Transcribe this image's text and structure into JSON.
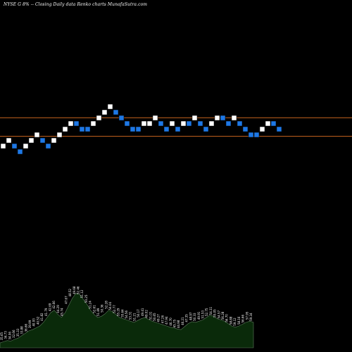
{
  "title": "NYSE G 8% -- Closing Daily data Renko charts MunafaSutra.com",
  "colors": {
    "background": "#000000",
    "up_brick": "#ffffff",
    "down_brick": "#1e78e6",
    "brick_border": "#000000",
    "reference_line": "#c8641e",
    "volume_fill": "#0a2a0a",
    "volume_stroke": "#5a7a5a",
    "volume_label": "#ffffff"
  },
  "chart_data": {
    "type": "renko",
    "title": "NYSE G 8% -- Closing Daily data Renko charts MunafaSutra.com",
    "brick_levels": [
      0,
      1,
      0,
      -1,
      0,
      1,
      2,
      1,
      0,
      1,
      2,
      3,
      4,
      4,
      3,
      3,
      4,
      5,
      6,
      7,
      6,
      5,
      4,
      3,
      3,
      4,
      4,
      5,
      4,
      3,
      4,
      3,
      4,
      4,
      5,
      4,
      3,
      4,
      5,
      5,
      4,
      5,
      4,
      3,
      2,
      2,
      3,
      4,
      4,
      3
    ],
    "brick_direction": [
      "up",
      "up",
      "down",
      "down",
      "up",
      "up",
      "up",
      "down",
      "down",
      "up",
      "up",
      "up",
      "up",
      "down",
      "down",
      "down",
      "up",
      "up",
      "up",
      "up",
      "down",
      "down",
      "down",
      "down",
      "down",
      "up",
      "up",
      "up",
      "down",
      "down",
      "up",
      "down",
      "up",
      "down",
      "up",
      "down",
      "down",
      "up",
      "up",
      "down",
      "down",
      "up",
      "down",
      "down",
      "down",
      "down",
      "up",
      "up",
      "down",
      "down"
    ],
    "reference_lines": [
      4.6,
      1.3
    ],
    "volume_labels": [
      "35.65",
      "34.73",
      "34.06",
      "32.66",
      "35.33",
      "33.88",
      "36.66",
      "39.99",
      "40.93",
      "40.52",
      "41.82",
      "41.79",
      "42.69",
      "42.66",
      "44.29",
      "45.74",
      "47.67",
      "48.52",
      "49.68",
      "52.46",
      "51.12",
      "50.25",
      "51.24",
      "52.61",
      "51.89",
      "50.36",
      "52.28",
      "54.04",
      "52.77",
      "55.29",
      "55.64",
      "54.56",
      "53.31",
      "51.21",
      "50.17",
      "49.41",
      "49.02",
      "51.01",
      "50.65",
      "49.27",
      "47.26",
      "47.94",
      "46.70",
      "45.75",
      "44.98",
      "46.21",
      "47.35",
      "48.97",
      "50.33",
      "49.91",
      "51.53",
      "52.75",
      "54.11",
      "55.05",
      "54.57",
      "56.28",
      "56.70",
      "58.88",
      "59.12",
      "58.16",
      "56.66",
      "57.95",
      "59.34"
    ],
    "volume_profile": [
      0.08,
      0.1,
      0.12,
      0.11,
      0.14,
      0.16,
      0.2,
      0.24,
      0.28,
      0.3,
      0.33,
      0.36,
      0.42,
      0.5,
      0.58,
      0.62,
      0.55,
      0.5,
      0.58,
      0.7,
      0.82,
      0.9,
      0.88,
      0.8,
      0.72,
      0.62,
      0.55,
      0.5,
      0.52,
      0.56,
      0.62,
      0.6,
      0.55,
      0.5,
      0.48,
      0.46,
      0.44,
      0.42,
      0.45,
      0.48,
      0.5,
      0.47,
      0.44,
      0.42,
      0.4,
      0.38,
      0.36,
      0.34,
      0.33,
      0.31,
      0.3,
      0.35,
      0.4,
      0.43,
      0.42,
      0.44,
      0.46,
      0.5,
      0.54,
      0.52,
      0.48,
      0.46,
      0.44,
      0.4,
      0.36,
      0.34,
      0.36,
      0.39,
      0.42,
      0.44,
      0.42
    ]
  }
}
